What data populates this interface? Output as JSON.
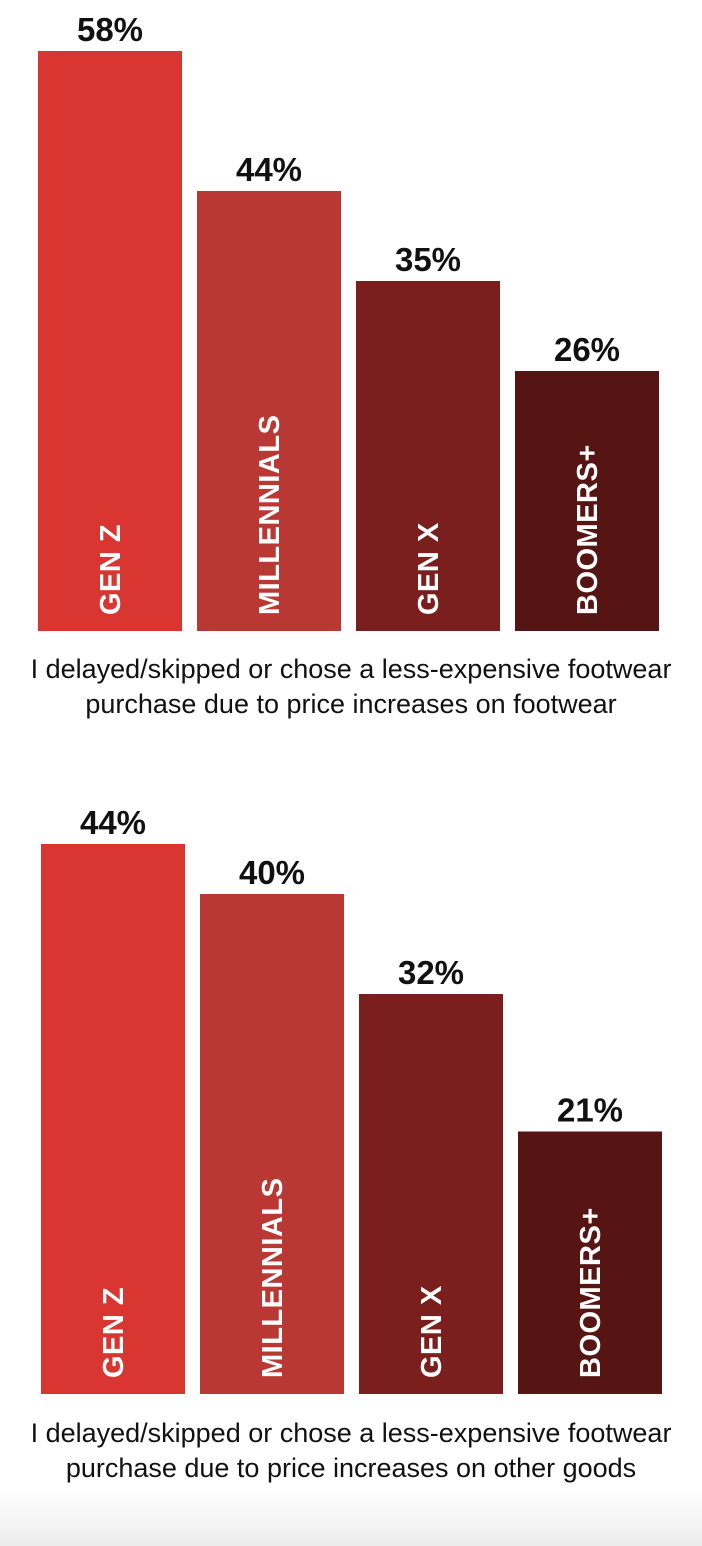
{
  "chart_data": [
    {
      "type": "bar",
      "categories": [
        "GEN Z",
        "MILLENNIALS",
        "GEN X",
        "BOOMERS+"
      ],
      "values": [
        58,
        44,
        35,
        26
      ],
      "value_labels": [
        "58%",
        "44%",
        "35%",
        "26%"
      ],
      "caption": "I delayed/skipped or chose a less-expensive footwear purchase due to price increases on footwear",
      "colors": [
        "#d93631",
        "#b93834",
        "#7a1f1d",
        "#561413"
      ],
      "ylim": [
        0,
        58
      ]
    },
    {
      "type": "bar",
      "categories": [
        "GEN Z",
        "MILLENNIALS",
        "GEN X",
        "BOOMERS+"
      ],
      "values": [
        44,
        40,
        32,
        21
      ],
      "value_labels": [
        "44%",
        "40%",
        "32%",
        "21%"
      ],
      "caption": "I delayed/skipped or chose a less-expensive footwear purchase due to price increases on other goods",
      "colors": [
        "#d93631",
        "#b93834",
        "#7a1f1d",
        "#561413"
      ],
      "ylim": [
        0,
        44
      ]
    }
  ]
}
